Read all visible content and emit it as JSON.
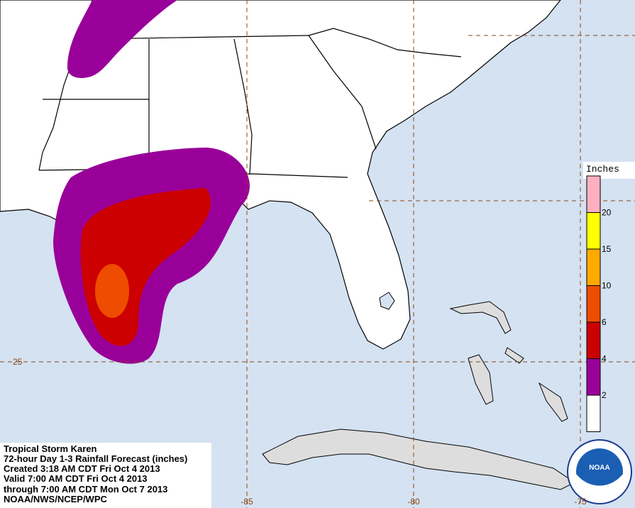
{
  "map": {
    "title": "Tropical Storm Karen",
    "subtitle": "72-hour Day 1-3 Rainfall Forecast (inches)",
    "created": "Created 3:18 AM CDT Fri Oct 4 2013",
    "valid": "Valid 7:00 AM CDT Fri Oct 4 2013",
    "through": "through 7:00 AM CDT Mon Oct 7 2013",
    "credit": "NOAA/NWS/NCEP/WPC",
    "logo": "NOAA",
    "grid": {
      "lat": [
        25
      ],
      "lon": [
        -85,
        -80,
        -75
      ]
    },
    "legend": {
      "title": "Inches",
      "levels": [
        {
          "label": "2",
          "color": "#990099"
        },
        {
          "label": "4",
          "color": "#cc0000"
        },
        {
          "label": "6",
          "color": "#ee4c00"
        },
        {
          "label": "10",
          "color": "#ffaa00"
        },
        {
          "label": "15",
          "color": "#ffff00"
        },
        {
          "label": "20",
          "color": "#ffb0c0"
        }
      ],
      "base_color": "#ffffff"
    }
  }
}
